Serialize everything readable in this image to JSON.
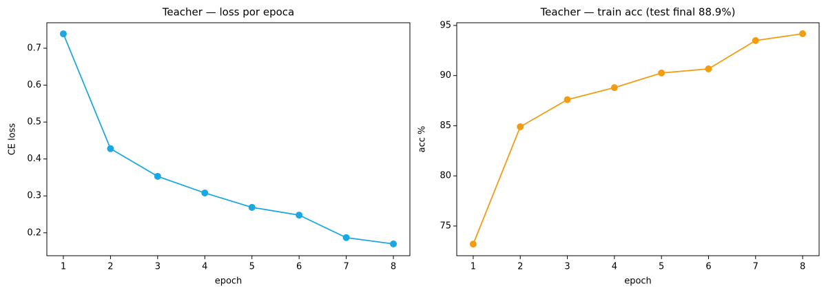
{
  "chart_data": [
    {
      "type": "line",
      "title": "Teacher — loss por epoca",
      "x_label": "epoch",
      "y_label": "CE loss",
      "x": [
        1,
        2,
        3,
        4,
        5,
        6,
        7,
        8
      ],
      "series": [
        {
          "color": "#1ba7e0",
          "values": [
            0.739,
            0.428,
            0.353,
            0.308,
            0.269,
            0.248,
            0.187,
            0.17
          ]
        }
      ],
      "xlim": [
        0.65,
        8.35
      ],
      "ylim": [
        0.138,
        0.769
      ],
      "xticks": [
        1,
        2,
        3,
        4,
        5,
        6,
        7,
        8
      ],
      "yticks": [
        0.2,
        0.3,
        0.4,
        0.5,
        0.6,
        0.7
      ],
      "grid": false,
      "markers": true
    },
    {
      "type": "line",
      "title": "Teacher — train acc (test final 88.9%)",
      "x_label": "epoch",
      "y_label": "acc %",
      "x": [
        1,
        2,
        3,
        4,
        5,
        6,
        7,
        8
      ],
      "series": [
        {
          "color": "#f39c12",
          "values": [
            73.2,
            84.9,
            87.6,
            88.8,
            90.26,
            90.67,
            93.49,
            94.18
          ]
        }
      ],
      "xlim": [
        0.65,
        8.35
      ],
      "ylim": [
        72.04,
        95.27
      ],
      "xticks": [
        1,
        2,
        3,
        4,
        5,
        6,
        7,
        8
      ],
      "yticks": [
        75,
        80,
        85,
        90,
        95
      ],
      "grid": false,
      "markers": true
    }
  ]
}
